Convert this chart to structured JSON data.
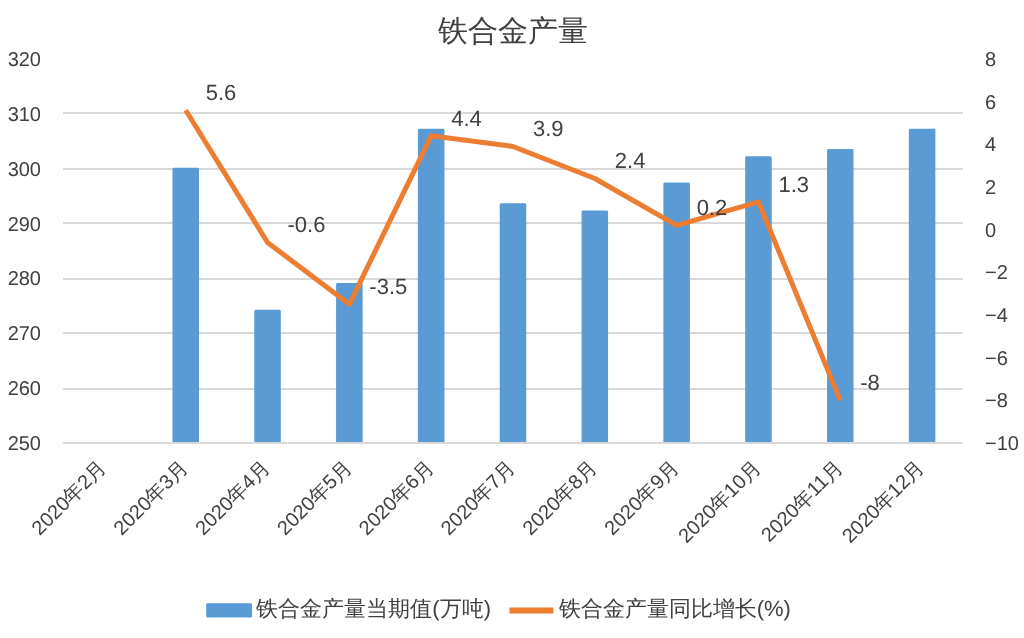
{
  "chart_data": {
    "type": "bar",
    "title": "铁合金产量",
    "categories": [
      "2020年2月",
      "2020年3月",
      "2020年4月",
      "2020年5月",
      "2020年6月",
      "2020年7月",
      "2020年8月",
      "2020年9月",
      "2020年10月",
      "2020年11月",
      "2020年12月"
    ],
    "series": [
      {
        "name": "铁合金产量当期值(万吨)",
        "color": "#5b9bd5",
        "values": [
          null,
          300,
          274.1,
          279,
          307.1,
          293.5,
          292.2,
          297.3,
          302.1,
          303.4,
          307.1
        ]
      },
      {
        "name": "铁合金产量同比增长(%)",
        "type": "line",
        "axis": "y2",
        "color": "#ed7d31",
        "values": [
          null,
          5.6,
          -0.6,
          -3.5,
          4.4,
          3.9,
          2.4,
          0.2,
          1.3,
          -8,
          null
        ],
        "value_labels": [
          null,
          "5.6",
          "-0.6",
          "-3.5",
          "4.4",
          "3.9",
          "2.4",
          "0.2",
          "1.3",
          "-8",
          null
        ]
      }
    ],
    "ylim": [
      250,
      320
    ],
    "yticks": [
      250,
      260,
      270,
      280,
      290,
      300,
      310,
      320
    ],
    "y2lim": [
      -10,
      8
    ],
    "y2ticks": [
      -10,
      -8,
      -6,
      -4,
      -2,
      0,
      2,
      4,
      6,
      8
    ],
    "grid": "y",
    "legend": "bottom",
    "line_style": "solid",
    "marker": "none"
  }
}
